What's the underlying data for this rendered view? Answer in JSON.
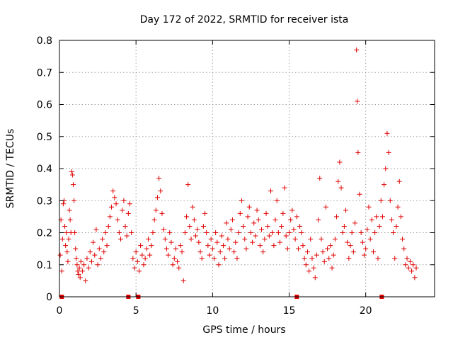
{
  "chart_data": {
    "type": "scatter",
    "title": "Day 172 of 2022, SRMTID for receiver ista",
    "xlabel": "GPS time / hours",
    "ylabel": "SRMTID / TECUs",
    "xlim": [
      0,
      24.5
    ],
    "ylim": [
      0,
      0.8
    ],
    "xticks": [
      0,
      5,
      10,
      15,
      20
    ],
    "yticks": [
      0,
      0.1,
      0.2,
      0.3,
      0.4,
      0.5,
      0.6,
      0.7,
      0.8
    ],
    "xtick_labels": [
      "0",
      "5",
      "10",
      "15",
      "20"
    ],
    "ytick_labels": [
      "0",
      "0.1",
      "0.2",
      "0.3",
      "0.4",
      "0.5",
      "0.6",
      "0.7",
      "0.8"
    ],
    "grid": true,
    "marker": "+",
    "color": "#e00000",
    "series": [
      {
        "name": "SRMTID",
        "points": [
          [
            0.05,
            0.13
          ],
          [
            0.1,
            0.24
          ],
          [
            0.15,
            0.08
          ],
          [
            0.2,
            0.18
          ],
          [
            0.25,
            0.29
          ],
          [
            0.3,
            0.3
          ],
          [
            0.35,
            0.22
          ],
          [
            0.4,
            0.16
          ],
          [
            0.45,
            0.2
          ],
          [
            0.5,
            0.14
          ],
          [
            0.55,
            0.11
          ],
          [
            0.6,
            0.18
          ],
          [
            0.65,
            0.27
          ],
          [
            0.7,
            0.24
          ],
          [
            0.75,
            0.2
          ],
          [
            0.8,
            0.39
          ],
          [
            0.85,
            0.38
          ],
          [
            0.9,
            0.35
          ],
          [
            0.95,
            0.3
          ],
          [
            1.0,
            0.2
          ],
          [
            1.05,
            0.15
          ],
          [
            1.1,
            0.12
          ],
          [
            1.15,
            0.1
          ],
          [
            1.2,
            0.08
          ],
          [
            1.25,
            0.07
          ],
          [
            1.3,
            0.09
          ],
          [
            1.35,
            0.06
          ],
          [
            1.4,
            0.11
          ],
          [
            1.5,
            0.08
          ],
          [
            1.6,
            0.1
          ],
          [
            1.7,
            0.05
          ],
          [
            1.8,
            0.12
          ],
          [
            1.9,
            0.09
          ],
          [
            2.0,
            0.14
          ],
          [
            2.1,
            0.11
          ],
          [
            2.2,
            0.17
          ],
          [
            2.3,
            0.13
          ],
          [
            2.4,
            0.21
          ],
          [
            2.5,
            0.1
          ],
          [
            2.6,
            0.15
          ],
          [
            2.7,
            0.12
          ],
          [
            2.8,
            0.18
          ],
          [
            2.9,
            0.14
          ],
          [
            3.0,
            0.2
          ],
          [
            3.1,
            0.16
          ],
          [
            3.2,
            0.22
          ],
          [
            3.3,
            0.25
          ],
          [
            3.4,
            0.28
          ],
          [
            3.5,
            0.33
          ],
          [
            3.6,
            0.31
          ],
          [
            3.7,
            0.29
          ],
          [
            3.8,
            0.24
          ],
          [
            3.9,
            0.2
          ],
          [
            4.0,
            0.18
          ],
          [
            4.1,
            0.27
          ],
          [
            4.2,
            0.3
          ],
          [
            4.3,
            0.22
          ],
          [
            4.4,
            0.19
          ],
          [
            4.5,
            0.26
          ],
          [
            4.6,
            0.29
          ],
          [
            4.7,
            0.2
          ],
          [
            4.8,
            0.12
          ],
          [
            4.9,
            0.09
          ],
          [
            5.0,
            0.14
          ],
          [
            5.1,
            0.11
          ],
          [
            5.2,
            0.08
          ],
          [
            5.3,
            0.16
          ],
          [
            5.4,
            0.13
          ],
          [
            5.5,
            0.1
          ],
          [
            5.6,
            0.12
          ],
          [
            5.7,
            0.15
          ],
          [
            5.8,
            0.18
          ],
          [
            5.9,
            0.13
          ],
          [
            6.0,
            0.16
          ],
          [
            6.1,
            0.2
          ],
          [
            6.2,
            0.24
          ],
          [
            6.3,
            0.27
          ],
          [
            6.4,
            0.31
          ],
          [
            6.5,
            0.37
          ],
          [
            6.6,
            0.33
          ],
          [
            6.7,
            0.26
          ],
          [
            6.8,
            0.21
          ],
          [
            6.9,
            0.18
          ],
          [
            7.0,
            0.15
          ],
          [
            7.1,
            0.13
          ],
          [
            7.2,
            0.2
          ],
          [
            7.3,
            0.17
          ],
          [
            7.4,
            0.1
          ],
          [
            7.5,
            0.12
          ],
          [
            7.6,
            0.15
          ],
          [
            7.7,
            0.11
          ],
          [
            7.8,
            0.09
          ],
          [
            7.9,
            0.16
          ],
          [
            8.0,
            0.14
          ],
          [
            8.1,
            0.05
          ],
          [
            8.2,
            0.2
          ],
          [
            8.3,
            0.25
          ],
          [
            8.4,
            0.35
          ],
          [
            8.5,
            0.22
          ],
          [
            8.6,
            0.18
          ],
          [
            8.7,
            0.28
          ],
          [
            8.8,
            0.24
          ],
          [
            8.9,
            0.19
          ],
          [
            9.0,
            0.21
          ],
          [
            9.1,
            0.17
          ],
          [
            9.2,
            0.14
          ],
          [
            9.3,
            0.12
          ],
          [
            9.4,
            0.22
          ],
          [
            9.5,
            0.26
          ],
          [
            9.6,
            0.2
          ],
          [
            9.7,
            0.16
          ],
          [
            9.8,
            0.13
          ],
          [
            9.9,
            0.18
          ],
          [
            10.0,
            0.15
          ],
          [
            10.1,
            0.12
          ],
          [
            10.2,
            0.2
          ],
          [
            10.3,
            0.17
          ],
          [
            10.4,
            0.1
          ],
          [
            10.5,
            0.14
          ],
          [
            10.6,
            0.19
          ],
          [
            10.7,
            0.16
          ],
          [
            10.8,
            0.12
          ],
          [
            10.9,
            0.23
          ],
          [
            11.0,
            0.18
          ],
          [
            11.1,
            0.15
          ],
          [
            11.2,
            0.21
          ],
          [
            11.3,
            0.24
          ],
          [
            11.4,
            0.14
          ],
          [
            11.5,
            0.17
          ],
          [
            11.6,
            0.12
          ],
          [
            11.7,
            0.2
          ],
          [
            11.8,
            0.26
          ],
          [
            11.9,
            0.3
          ],
          [
            12.0,
            0.22
          ],
          [
            12.1,
            0.18
          ],
          [
            12.2,
            0.15
          ],
          [
            12.3,
            0.25
          ],
          [
            12.4,
            0.28
          ],
          [
            12.5,
            0.2
          ],
          [
            12.6,
            0.17
          ],
          [
            12.7,
            0.23
          ],
          [
            12.8,
            0.19
          ],
          [
            12.9,
            0.27
          ],
          [
            13.0,
            0.24
          ],
          [
            13.1,
            0.16
          ],
          [
            13.2,
            0.21
          ],
          [
            13.3,
            0.14
          ],
          [
            13.4,
            0.18
          ],
          [
            13.5,
            0.26
          ],
          [
            13.6,
            0.22
          ],
          [
            13.7,
            0.19
          ],
          [
            13.8,
            0.33
          ],
          [
            13.9,
            0.2
          ],
          [
            14.0,
            0.16
          ],
          [
            14.1,
            0.24
          ],
          [
            14.2,
            0.3
          ],
          [
            14.3,
            0.2
          ],
          [
            14.4,
            0.17
          ],
          [
            14.5,
            0.22
          ],
          [
            14.6,
            0.26
          ],
          [
            14.7,
            0.34
          ],
          [
            14.8,
            0.19
          ],
          [
            14.9,
            0.15
          ],
          [
            15.0,
            0.2
          ],
          [
            15.1,
            0.24
          ],
          [
            15.2,
            0.27
          ],
          [
            15.3,
            0.21
          ],
          [
            15.4,
            0.18
          ],
          [
            15.5,
            0.25
          ],
          [
            15.6,
            0.15
          ],
          [
            15.7,
            0.22
          ],
          [
            15.8,
            0.2
          ],
          [
            15.9,
            0.16
          ],
          [
            16.0,
            0.12
          ],
          [
            16.1,
            0.1
          ],
          [
            16.2,
            0.14
          ],
          [
            16.3,
            0.08
          ],
          [
            16.4,
            0.18
          ],
          [
            16.5,
            0.12
          ],
          [
            16.6,
            0.09
          ],
          [
            16.7,
            0.06
          ],
          [
            16.8,
            0.13
          ],
          [
            16.9,
            0.24
          ],
          [
            17.0,
            0.37
          ],
          [
            17.1,
            0.18
          ],
          [
            17.2,
            0.14
          ],
          [
            17.3,
            0.11
          ],
          [
            17.4,
            0.28
          ],
          [
            17.5,
            0.15
          ],
          [
            17.6,
            0.12
          ],
          [
            17.7,
            0.16
          ],
          [
            17.8,
            0.09
          ],
          [
            17.9,
            0.13
          ],
          [
            18.0,
            0.18
          ],
          [
            18.1,
            0.25
          ],
          [
            18.2,
            0.36
          ],
          [
            18.3,
            0.42
          ],
          [
            18.4,
            0.34
          ],
          [
            18.5,
            0.2
          ],
          [
            18.6,
            0.22
          ],
          [
            18.7,
            0.27
          ],
          [
            18.8,
            0.17
          ],
          [
            18.9,
            0.12
          ],
          [
            19.0,
            0.16
          ],
          [
            19.1,
            0.2
          ],
          [
            19.2,
            0.14
          ],
          [
            19.3,
            0.23
          ],
          [
            19.4,
            0.77
          ],
          [
            19.45,
            0.61
          ],
          [
            19.5,
            0.45
          ],
          [
            19.6,
            0.32
          ],
          [
            19.7,
            0.2
          ],
          [
            19.8,
            0.17
          ],
          [
            19.9,
            0.13
          ],
          [
            20.0,
            0.15
          ],
          [
            20.1,
            0.21
          ],
          [
            20.2,
            0.28
          ],
          [
            20.3,
            0.18
          ],
          [
            20.4,
            0.24
          ],
          [
            20.5,
            0.14
          ],
          [
            20.6,
            0.2
          ],
          [
            20.7,
            0.25
          ],
          [
            20.8,
            0.12
          ],
          [
            20.9,
            0.22
          ],
          [
            21.0,
            0.3
          ],
          [
            21.1,
            0.25
          ],
          [
            21.2,
            0.35
          ],
          [
            21.3,
            0.4
          ],
          [
            21.4,
            0.51
          ],
          [
            21.5,
            0.45
          ],
          [
            21.6,
            0.3
          ],
          [
            21.7,
            0.24
          ],
          [
            21.8,
            0.2
          ],
          [
            21.9,
            0.12
          ],
          [
            22.0,
            0.22
          ],
          [
            22.1,
            0.28
          ],
          [
            22.2,
            0.36
          ],
          [
            22.3,
            0.25
          ],
          [
            22.4,
            0.18
          ],
          [
            22.5,
            0.15
          ],
          [
            22.6,
            0.1
          ],
          [
            22.7,
            0.12
          ],
          [
            22.8,
            0.09
          ],
          [
            22.9,
            0.11
          ],
          [
            23.0,
            0.08
          ],
          [
            23.1,
            0.1
          ],
          [
            23.2,
            0.06
          ],
          [
            23.3,
            0.09
          ],
          [
            0.15,
            0.0
          ],
          [
            4.5,
            0.0
          ],
          [
            5.15,
            0.0
          ],
          [
            15.5,
            0.0
          ],
          [
            21.05,
            0.0
          ]
        ]
      }
    ]
  }
}
